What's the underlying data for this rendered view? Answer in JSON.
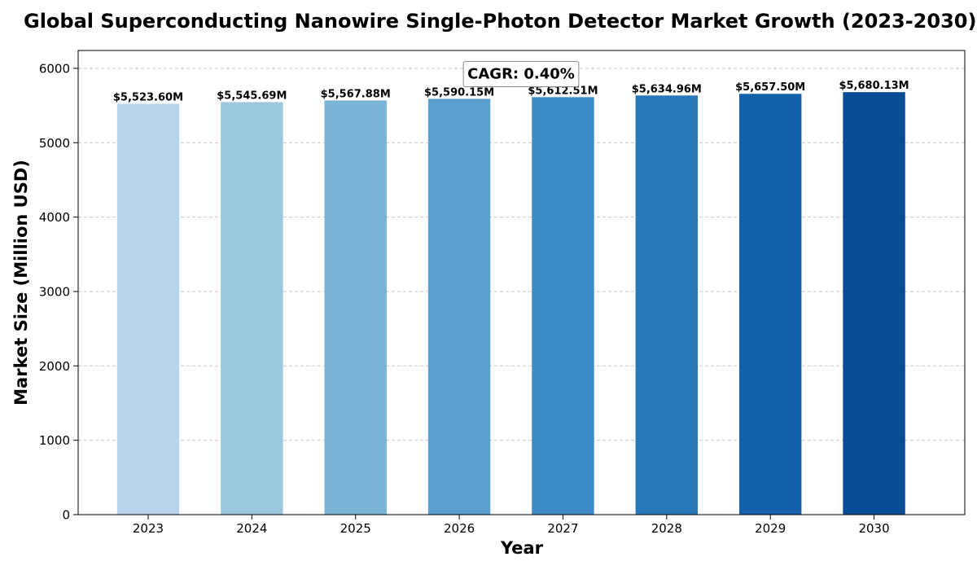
{
  "chart_data": {
    "type": "bar",
    "title": "Global Superconducting Nanowire Single-Photon Detector Market Growth (2023-2030)",
    "xlabel": "Year",
    "ylabel": "Market Size (Million USD)",
    "categories": [
      "2023",
      "2024",
      "2025",
      "2026",
      "2027",
      "2028",
      "2029",
      "2030"
    ],
    "values": [
      5523.6,
      5545.69,
      5567.88,
      5590.15,
      5612.51,
      5634.96,
      5657.5,
      5680.13
    ],
    "data_labels": [
      "$5,523.60M",
      "$5,545.69M",
      "$5,567.88M",
      "$5,590.15M",
      "$5,612.51M",
      "$5,634.96M",
      "$5,657.50M",
      "$5,680.13M"
    ],
    "bar_colors": [
      "#b9d4ea",
      "#9bc7df",
      "#7ab5d8",
      "#59a0cf",
      "#3d8bc4",
      "#2878b9",
      "#1460ab",
      "#084c94"
    ],
    "ylim": [
      0,
      6240
    ],
    "yticks": [
      0,
      1000,
      2000,
      3000,
      4000,
      5000,
      6000
    ],
    "grid": "y-dashed",
    "annotation": "CAGR: 0.40%"
  }
}
